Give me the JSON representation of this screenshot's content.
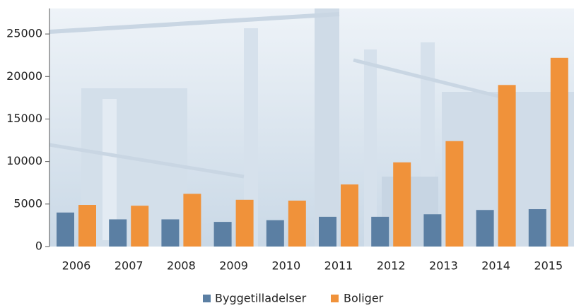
{
  "chart_data": {
    "type": "bar",
    "categories": [
      "2006",
      "2007",
      "2008",
      "2009",
      "2010",
      "2011",
      "2012",
      "2013",
      "2014",
      "2015"
    ],
    "series": [
      {
        "name": "Byggetilladelser",
        "color": "#5b7fa3",
        "values": [
          4000,
          3200,
          3200,
          2900,
          3100,
          3500,
          3500,
          3800,
          4300,
          4400
        ]
      },
      {
        "name": "Boliger",
        "color": "#f0923a",
        "values": [
          4900,
          4800,
          6200,
          5500,
          5400,
          7300,
          9900,
          12400,
          19000,
          22200
        ]
      }
    ],
    "ylim": [
      0,
      28000
    ],
    "yticks": [
      0,
      5000,
      10000,
      15000,
      20000,
      25000
    ]
  }
}
